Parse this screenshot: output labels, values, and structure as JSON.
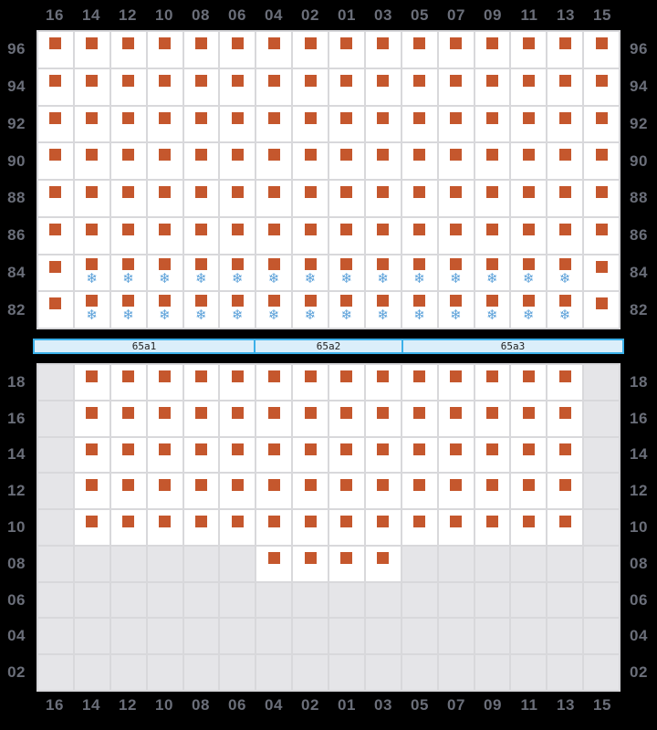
{
  "columns": [
    "16",
    "14",
    "12",
    "10",
    "08",
    "06",
    "04",
    "02",
    "01",
    "03",
    "05",
    "07",
    "09",
    "11",
    "13",
    "15"
  ],
  "cell_codes": {
    "S": "container",
    "F": "refrigerated container (reefer)",
    "G": "no slot"
  },
  "deck": {
    "tiers": [
      "96",
      "94",
      "92",
      "90",
      "88",
      "86",
      "84",
      "82"
    ],
    "rows": [
      {
        "tier": "96",
        "cells": [
          "S",
          "S",
          "S",
          "S",
          "S",
          "S",
          "S",
          "S",
          "S",
          "S",
          "S",
          "S",
          "S",
          "S",
          "S",
          "S"
        ]
      },
      {
        "tier": "94",
        "cells": [
          "S",
          "S",
          "S",
          "S",
          "S",
          "S",
          "S",
          "S",
          "S",
          "S",
          "S",
          "S",
          "S",
          "S",
          "S",
          "S"
        ]
      },
      {
        "tier": "92",
        "cells": [
          "S",
          "S",
          "S",
          "S",
          "S",
          "S",
          "S",
          "S",
          "S",
          "S",
          "S",
          "S",
          "S",
          "S",
          "S",
          "S"
        ]
      },
      {
        "tier": "90",
        "cells": [
          "S",
          "S",
          "S",
          "S",
          "S",
          "S",
          "S",
          "S",
          "S",
          "S",
          "S",
          "S",
          "S",
          "S",
          "S",
          "S"
        ]
      },
      {
        "tier": "88",
        "cells": [
          "S",
          "S",
          "S",
          "S",
          "S",
          "S",
          "S",
          "S",
          "S",
          "S",
          "S",
          "S",
          "S",
          "S",
          "S",
          "S"
        ]
      },
      {
        "tier": "86",
        "cells": [
          "S",
          "S",
          "S",
          "S",
          "S",
          "S",
          "S",
          "S",
          "S",
          "S",
          "S",
          "S",
          "S",
          "S",
          "S",
          "S"
        ]
      },
      {
        "tier": "84",
        "cells": [
          "S",
          "F",
          "F",
          "F",
          "F",
          "F",
          "F",
          "F",
          "F",
          "F",
          "F",
          "F",
          "F",
          "F",
          "F",
          "S"
        ]
      },
      {
        "tier": "82",
        "cells": [
          "S",
          "F",
          "F",
          "F",
          "F",
          "F",
          "F",
          "F",
          "F",
          "F",
          "F",
          "F",
          "F",
          "F",
          "F",
          "S"
        ]
      }
    ]
  },
  "sections": [
    {
      "label": "65a1",
      "cols": 6
    },
    {
      "label": "65a2",
      "cols": 4
    },
    {
      "label": "65a3",
      "cols": 6
    }
  ],
  "hold": {
    "tiers": [
      "18",
      "16",
      "14",
      "12",
      "10",
      "08",
      "06",
      "04",
      "02"
    ],
    "rows": [
      {
        "tier": "18",
        "cells": [
          "G",
          "S",
          "S",
          "S",
          "S",
          "S",
          "S",
          "S",
          "S",
          "S",
          "S",
          "S",
          "S",
          "S",
          "S",
          "G"
        ]
      },
      {
        "tier": "16",
        "cells": [
          "G",
          "S",
          "S",
          "S",
          "S",
          "S",
          "S",
          "S",
          "S",
          "S",
          "S",
          "S",
          "S",
          "S",
          "S",
          "G"
        ]
      },
      {
        "tier": "14",
        "cells": [
          "G",
          "S",
          "S",
          "S",
          "S",
          "S",
          "S",
          "S",
          "S",
          "S",
          "S",
          "S",
          "S",
          "S",
          "S",
          "G"
        ]
      },
      {
        "tier": "12",
        "cells": [
          "G",
          "S",
          "S",
          "S",
          "S",
          "S",
          "S",
          "S",
          "S",
          "S",
          "S",
          "S",
          "S",
          "S",
          "S",
          "G"
        ]
      },
      {
        "tier": "10",
        "cells": [
          "G",
          "S",
          "S",
          "S",
          "S",
          "S",
          "S",
          "S",
          "S",
          "S",
          "S",
          "S",
          "S",
          "S",
          "S",
          "G"
        ]
      },
      {
        "tier": "08",
        "cells": [
          "G",
          "G",
          "G",
          "G",
          "G",
          "G",
          "S",
          "S",
          "S",
          "S",
          "G",
          "G",
          "G",
          "G",
          "G",
          "G"
        ]
      },
      {
        "tier": "06",
        "cells": [
          "G",
          "G",
          "G",
          "G",
          "G",
          "G",
          "G",
          "G",
          "G",
          "G",
          "G",
          "G",
          "G",
          "G",
          "G",
          "G"
        ]
      },
      {
        "tier": "04",
        "cells": [
          "G",
          "G",
          "G",
          "G",
          "G",
          "G",
          "G",
          "G",
          "G",
          "G",
          "G",
          "G",
          "G",
          "G",
          "G",
          "G"
        ]
      },
      {
        "tier": "02",
        "cells": [
          "G",
          "G",
          "G",
          "G",
          "G",
          "G",
          "G",
          "G",
          "G",
          "G",
          "G",
          "G",
          "G",
          "G",
          "G",
          "G"
        ]
      }
    ]
  },
  "icons": {
    "container": "square-icon",
    "reefer": "snowflake-icon",
    "reefer_glyph": "❄"
  },
  "colors": {
    "background": "#000000",
    "label": "#6a6e79",
    "grid_line": "#d8d8db",
    "slot": "#ffffff",
    "no_slot": "#e5e5e8",
    "container": "#c5572d",
    "reefer": "#5aa0d9",
    "section_fill": "#dbeefa",
    "section_border": "#3bb0e9"
  }
}
